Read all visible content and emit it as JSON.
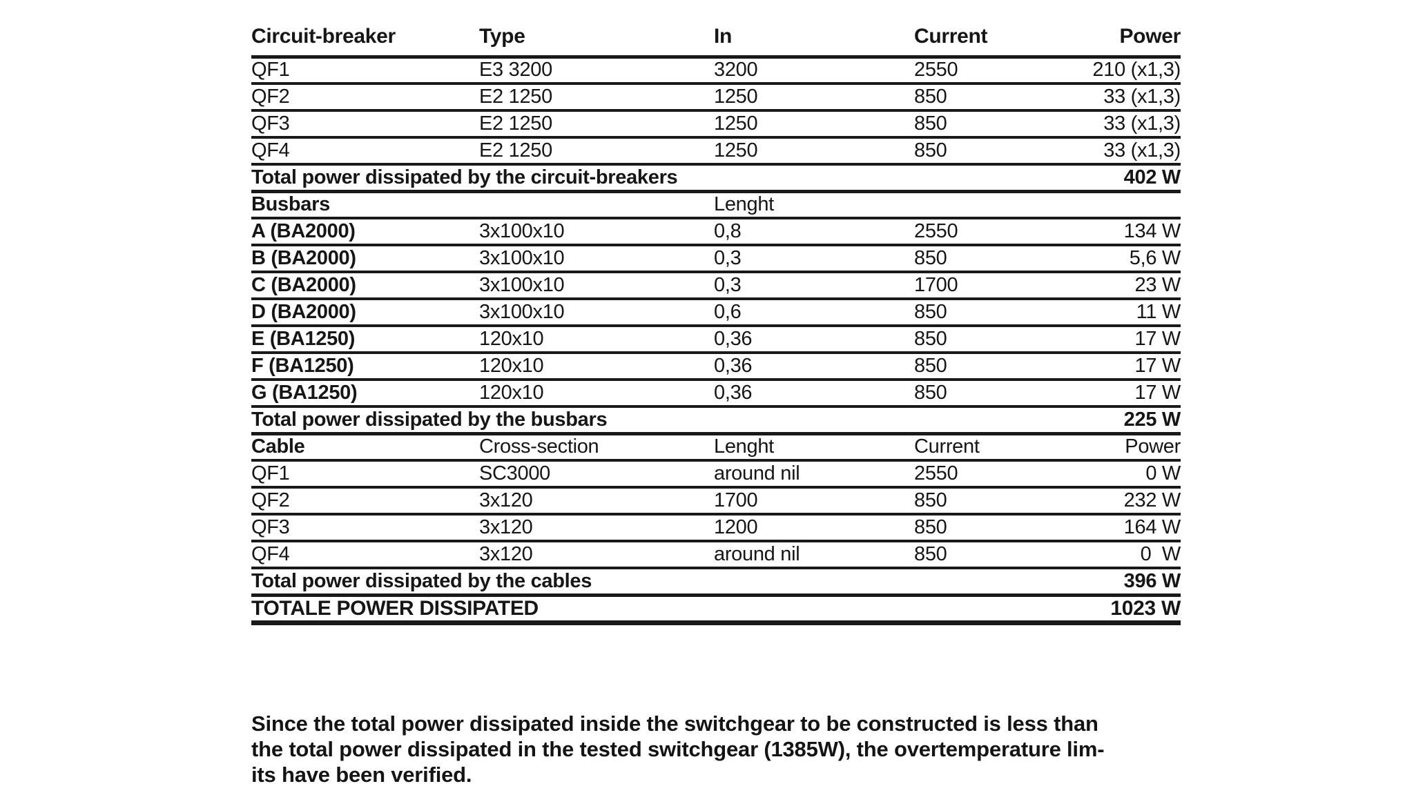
{
  "page": {
    "background": "#ffffff",
    "text_color": "#161616",
    "rule_color": "#191919"
  },
  "table": {
    "rows": [
      {
        "kind": "header",
        "cells": [
          "Circuit-breaker",
          "Type",
          "In",
          "Current",
          "Power"
        ]
      },
      {
        "kind": "data",
        "cells": [
          "QF1",
          "E3 3200",
          "3200",
          "2550",
          "210 (x1,3)"
        ]
      },
      {
        "kind": "data",
        "cells": [
          "QF2",
          "E2 1250",
          "1250",
          "850",
          "33 (x1,3)"
        ]
      },
      {
        "kind": "data",
        "cells": [
          "QF3",
          "E2 1250",
          "1250",
          "850",
          "33 (x1,3)"
        ]
      },
      {
        "kind": "data",
        "cells": [
          "QF4",
          "E2 1250",
          "1250",
          "850",
          "33 (x1,3)"
        ]
      },
      {
        "kind": "total",
        "label": "Total power dissipated by the circuit-breakers",
        "value": "402 W"
      },
      {
        "kind": "subheader",
        "cells": [
          "Busbars",
          "",
          "Lenght",
          "",
          ""
        ]
      },
      {
        "kind": "data",
        "cells": [
          "A (BA2000)",
          "3x100x10",
          "0,8",
          "2550",
          "134 W"
        ]
      },
      {
        "kind": "data",
        "cells": [
          "B (BA2000)",
          "3x100x10",
          "0,3",
          "850",
          "5,6 W"
        ]
      },
      {
        "kind": "data",
        "cells": [
          "C (BA2000)",
          "3x100x10",
          "0,3",
          "1700",
          "23 W"
        ]
      },
      {
        "kind": "data",
        "cells": [
          "D (BA2000)",
          "3x100x10",
          "0,6",
          "850",
          "11 W"
        ]
      },
      {
        "kind": "data",
        "cells": [
          "E (BA1250)",
          "120x10",
          "0,36",
          "850",
          "17 W"
        ]
      },
      {
        "kind": "data",
        "cells": [
          "F (BA1250)",
          "120x10",
          "0,36",
          "850",
          "17 W"
        ]
      },
      {
        "kind": "data",
        "cells": [
          "G (BA1250)",
          "120x10",
          "0,36",
          "850",
          "17 W"
        ]
      },
      {
        "kind": "total",
        "label": "Total power dissipated by the busbars",
        "value": "225 W"
      },
      {
        "kind": "subheader",
        "cells": [
          "Cable",
          "Cross-section",
          "Lenght",
          "Current",
          "Power"
        ]
      },
      {
        "kind": "data",
        "cells": [
          "QF1",
          "SC3000",
          "around nil",
          "2550",
          "0 W"
        ]
      },
      {
        "kind": "data",
        "cells": [
          "QF2",
          "3x120",
          "1700",
          "850",
          "232 W"
        ]
      },
      {
        "kind": "data",
        "cells": [
          "QF3",
          "3x120",
          "1200",
          "850",
          "164 W"
        ]
      },
      {
        "kind": "data",
        "cells": [
          "QF4",
          "3x120",
          "around nil",
          "850",
          "0  W"
        ]
      },
      {
        "kind": "total",
        "label": "Total power dissipated by the cables",
        "value": "396 W"
      },
      {
        "kind": "grand_total",
        "label": "TOTALE POWER DISSIPATED",
        "value": "1023 W"
      }
    ]
  },
  "note": {
    "lines": [
      "Since the total power dissipated inside the switchgear to be constructed is less than",
      "the total power dissipated in the tested switchgear (1385W), the overtemperature lim-",
      "its have been verified."
    ]
  }
}
